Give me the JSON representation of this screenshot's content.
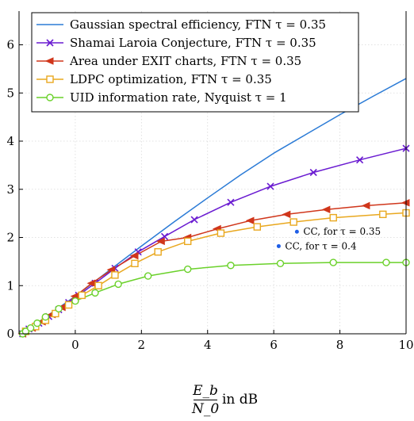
{
  "chart_data": {
    "type": "line",
    "xlabel_num": "E_b",
    "xlabel_den": "N_0",
    "xlabel_unit": "in dB",
    "xlim": [
      -1.7,
      10
    ],
    "ylim": [
      0,
      6.7
    ],
    "x_ticks": [
      0,
      2,
      4,
      6,
      8,
      10
    ],
    "x_tick_labels": [
      "0",
      "2",
      "4",
      "6",
      "8",
      "10"
    ],
    "y_ticks": [
      0,
      1,
      2,
      3,
      4,
      5,
      6
    ],
    "y_tick_labels": [
      "0",
      "1",
      "2",
      "3",
      "4",
      "5",
      "6"
    ],
    "grid": true,
    "legend_position": "top-left",
    "series": [
      {
        "name": "Gaussian spectral efficiency, FTN τ = 0.35",
        "color": "#2b7bd6",
        "marker": "none",
        "x": [
          -1.59,
          -1.0,
          0,
          1,
          2,
          3,
          4,
          5,
          6,
          7,
          8,
          9,
          10
        ],
        "y": [
          0,
          0.3,
          0.78,
          1.3,
          1.82,
          2.33,
          2.82,
          3.3,
          3.75,
          4.15,
          4.55,
          4.93,
          5.3
        ]
      },
      {
        "name": "Shamai Laroia Conjecture, FTN τ = 0.35",
        "color": "#6a1bd1",
        "marker": "x",
        "x": [
          -1.59,
          -1.4,
          -1.1,
          -0.8,
          -0.5,
          -0.2,
          0.1,
          0.6,
          1.2,
          1.9,
          2.7,
          3.6,
          4.7,
          5.9,
          7.2,
          8.6,
          10
        ],
        "y": [
          0,
          0.1,
          0.22,
          0.36,
          0.5,
          0.65,
          0.8,
          1.05,
          1.36,
          1.7,
          2.02,
          2.37,
          2.73,
          3.06,
          3.35,
          3.61,
          3.85
        ]
      },
      {
        "name": "Area under EXIT charts, FTN τ = 0.35",
        "color": "#d0361b",
        "marker": "triangle-left",
        "x": [
          -1.59,
          -1.3,
          -1.0,
          -0.7,
          -0.4,
          0.0,
          0.5,
          1.1,
          1.8,
          2.6,
          3.4,
          4.3,
          5.3,
          6.4,
          7.6,
          8.8,
          10
        ],
        "y": [
          0,
          0.12,
          0.25,
          0.4,
          0.55,
          0.78,
          1.05,
          1.33,
          1.62,
          1.92,
          2.0,
          2.18,
          2.35,
          2.48,
          2.58,
          2.66,
          2.72
        ]
      },
      {
        "name": "LDPC optimization, FTN τ = 0.35",
        "color": "#e9a81f",
        "marker": "square",
        "x": [
          -1.5,
          -1.2,
          -0.9,
          -0.6,
          -0.2,
          0.2,
          0.7,
          1.2,
          1.8,
          2.5,
          3.4,
          4.4,
          5.5,
          6.6,
          7.8,
          9.3,
          10
        ],
        "y": [
          0.05,
          0.15,
          0.28,
          0.42,
          0.6,
          0.8,
          1.0,
          1.22,
          1.46,
          1.7,
          1.92,
          2.09,
          2.22,
          2.32,
          2.41,
          2.48,
          2.51
        ]
      },
      {
        "name": "UID information rate, Nyquist τ = 1",
        "color": "#6ad12a",
        "marker": "circle",
        "x": [
          -1.59,
          -1.5,
          -1.35,
          -1.15,
          -0.9,
          -0.5,
          0.0,
          0.6,
          1.3,
          2.2,
          3.4,
          4.7,
          6.2,
          7.8,
          9.4,
          10
        ],
        "y": [
          0,
          0.05,
          0.12,
          0.22,
          0.35,
          0.52,
          0.68,
          0.85,
          1.03,
          1.2,
          1.34,
          1.42,
          1.46,
          1.48,
          1.48,
          1.48
        ]
      }
    ],
    "annotations": [
      {
        "label": "CC, for τ = 0.35",
        "x": 6.7,
        "y": 2.12,
        "color": "#1f5ee6"
      },
      {
        "label": "CC, for τ = 0.4",
        "x": 6.15,
        "y": 1.82,
        "color": "#1f5ee6"
      }
    ]
  }
}
